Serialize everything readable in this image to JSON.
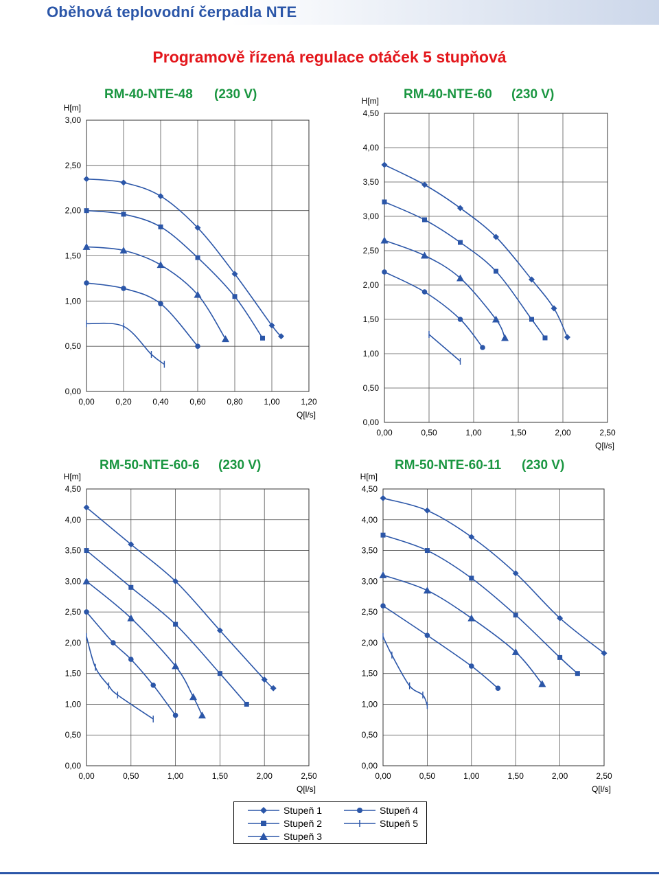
{
  "page": {
    "title": "Oběhová teplovodní čerpadla NTE",
    "subtitle": "Programově řízená regulace otáček 5 stupňová"
  },
  "colors": {
    "series": "#2b56a8",
    "title": "#2b56a8",
    "subtitle": "#e3161b",
    "chart_title": "#1a9641"
  },
  "legend": {
    "items": [
      {
        "label": "Stupeň 1",
        "marker": "diamond"
      },
      {
        "label": "Stupeň 2",
        "marker": "square"
      },
      {
        "label": "Stupeň 3",
        "marker": "triangle"
      },
      {
        "label": "Stupeň 4",
        "marker": "circle"
      },
      {
        "label": "Stupeň 5",
        "marker": "plus"
      }
    ]
  },
  "chart_data": [
    {
      "type": "line",
      "title": "RM-40-NTE-48",
      "voltage": "(230 V)",
      "ylabel": "H[m]",
      "xlabel": "Q[l/s]",
      "xlim": [
        0,
        1.2
      ],
      "ylim": [
        0,
        3
      ],
      "xticks": [
        "0,00",
        "0,20",
        "0,40",
        "0,60",
        "0,80",
        "1,00",
        "1,20"
      ],
      "yticks": [
        "0,00",
        "0,50",
        "1,00",
        "1,50",
        "2,00",
        "2,50",
        "3,00"
      ],
      "grid": true,
      "series": [
        {
          "name": "Stupeň 1",
          "marker": "diamond",
          "points": [
            [
              0,
              2.35
            ],
            [
              0.2,
              2.31
            ],
            [
              0.4,
              2.16
            ],
            [
              0.6,
              1.81
            ],
            [
              0.8,
              1.3
            ],
            [
              1.0,
              0.73
            ],
            [
              1.05,
              0.61
            ]
          ]
        },
        {
          "name": "Stupeň 2",
          "marker": "square",
          "points": [
            [
              0,
              2.0
            ],
            [
              0.2,
              1.96
            ],
            [
              0.4,
              1.82
            ],
            [
              0.6,
              1.48
            ],
            [
              0.8,
              1.05
            ],
            [
              0.95,
              0.59
            ]
          ]
        },
        {
          "name": "Stupeň 3",
          "marker": "triangle",
          "points": [
            [
              0,
              1.6
            ],
            [
              0.2,
              1.56
            ],
            [
              0.4,
              1.4
            ],
            [
              0.6,
              1.07
            ],
            [
              0.75,
              0.58
            ]
          ]
        },
        {
          "name": "Stupeň 4",
          "marker": "circle",
          "points": [
            [
              0,
              1.2
            ],
            [
              0.2,
              1.14
            ],
            [
              0.4,
              0.97
            ],
            [
              0.6,
              0.5
            ]
          ]
        },
        {
          "name": "Stupeň 5",
          "marker": "plus",
          "points": [
            [
              0,
              0.75
            ],
            [
              0.2,
              0.72
            ],
            [
              0.35,
              0.41
            ],
            [
              0.42,
              0.3
            ]
          ]
        }
      ]
    },
    {
      "type": "line",
      "title": "RM-40-NTE-60",
      "voltage": "(230 V)",
      "ylabel": "H[m]",
      "xlabel": "Q[l/s]",
      "xlim": [
        0,
        2.5
      ],
      "ylim": [
        0,
        4.5
      ],
      "xticks": [
        "0,00",
        "0,50",
        "1,00",
        "1,50",
        "2,00",
        "2,50"
      ],
      "yticks": [
        "0,00",
        "0,50",
        "1,00",
        "1,50",
        "2,00",
        "2,50",
        "3,00",
        "3,50",
        "4,00",
        "4,50"
      ],
      "grid": true,
      "series": [
        {
          "name": "Stupeň 1",
          "marker": "diamond",
          "points": [
            [
              0,
              3.75
            ],
            [
              0.45,
              3.46
            ],
            [
              0.85,
              3.12
            ],
            [
              1.25,
              2.7
            ],
            [
              1.65,
              2.08
            ],
            [
              1.9,
              1.66
            ],
            [
              2.05,
              1.24
            ]
          ]
        },
        {
          "name": "Stupeň 2",
          "marker": "square",
          "points": [
            [
              0,
              3.21
            ],
            [
              0.45,
              2.95
            ],
            [
              0.85,
              2.62
            ],
            [
              1.25,
              2.2
            ],
            [
              1.65,
              1.5
            ],
            [
              1.8,
              1.23
            ]
          ]
        },
        {
          "name": "Stupeň 3",
          "marker": "triangle",
          "points": [
            [
              0,
              2.65
            ],
            [
              0.45,
              2.43
            ],
            [
              0.85,
              2.1
            ],
            [
              1.25,
              1.5
            ],
            [
              1.35,
              1.23
            ]
          ]
        },
        {
          "name": "Stupeň 4",
          "marker": "circle",
          "points": [
            [
              0,
              2.19
            ],
            [
              0.45,
              1.9
            ],
            [
              0.85,
              1.5
            ],
            [
              1.1,
              1.09
            ]
          ]
        },
        {
          "name": "Stupeň 5",
          "marker": "plus",
          "points": [
            [
              0.5,
              1.28
            ],
            [
              0.85,
              0.89
            ]
          ]
        }
      ]
    },
    {
      "type": "line",
      "title": "RM-50-NTE-60-6",
      "voltage": "(230 V)",
      "ylabel": "H[m]",
      "xlabel": "Q[l/s]",
      "xlim": [
        0,
        2.5
      ],
      "ylim": [
        0,
        4.5
      ],
      "xticks": [
        "0,00",
        "0,50",
        "1,00",
        "1,50",
        "2,00",
        "2,50"
      ],
      "yticks": [
        "0,00",
        "0,50",
        "1,00",
        "1,50",
        "2,00",
        "2,50",
        "3,00",
        "3,50",
        "4,00",
        "4,50"
      ],
      "grid": true,
      "series": [
        {
          "name": "Stupeň 1",
          "marker": "diamond",
          "points": [
            [
              0,
              4.2
            ],
            [
              0.5,
              3.6
            ],
            [
              1.0,
              3.0
            ],
            [
              1.5,
              2.2
            ],
            [
              2.0,
              1.4
            ],
            [
              2.1,
              1.26
            ]
          ]
        },
        {
          "name": "Stupeň 2",
          "marker": "square",
          "points": [
            [
              0,
              3.5
            ],
            [
              0.5,
              2.9
            ],
            [
              1.0,
              2.3
            ],
            [
              1.5,
              1.5
            ],
            [
              1.8,
              1.0
            ]
          ]
        },
        {
          "name": "Stupeň 3",
          "marker": "triangle",
          "points": [
            [
              0,
              3.0
            ],
            [
              0.5,
              2.4
            ],
            [
              1.0,
              1.62
            ],
            [
              1.2,
              1.12
            ],
            [
              1.3,
              0.82
            ]
          ]
        },
        {
          "name": "Stupeň 4",
          "marker": "circle",
          "points": [
            [
              0,
              2.5
            ],
            [
              0.3,
              2.0
            ],
            [
              0.5,
              1.73
            ],
            [
              0.75,
              1.31
            ],
            [
              1.0,
              0.82
            ]
          ]
        },
        {
          "name": "Stupeň 5",
          "marker": "plus",
          "points": [
            [
              0,
              2.1
            ],
            [
              0.1,
              1.6
            ],
            [
              0.25,
              1.3
            ],
            [
              0.35,
              1.15
            ],
            [
              0.75,
              0.76
            ]
          ]
        }
      ]
    },
    {
      "type": "line",
      "title": "RM-50-NTE-60-11",
      "voltage": "(230 V)",
      "ylabel": "H[m]",
      "xlabel": "Q[l/s]",
      "xlim": [
        0,
        2.5
      ],
      "ylim": [
        0,
        4.5
      ],
      "xticks": [
        "0,00",
        "0,50",
        "1,00",
        "1,50",
        "2,00",
        "2,50"
      ],
      "yticks": [
        "0,00",
        "0,50",
        "1,00",
        "1,50",
        "2,00",
        "2,50",
        "3,00",
        "3,50",
        "4,00",
        "4,50"
      ],
      "grid": true,
      "series": [
        {
          "name": "Stupeň 1",
          "marker": "diamond",
          "points": [
            [
              0,
              4.35
            ],
            [
              0.5,
              4.15
            ],
            [
              1.0,
              3.72
            ],
            [
              1.5,
              3.13
            ],
            [
              2.0,
              2.4
            ],
            [
              2.5,
              1.83
            ]
          ]
        },
        {
          "name": "Stupeň 2",
          "marker": "square",
          "points": [
            [
              0,
              3.75
            ],
            [
              0.5,
              3.5
            ],
            [
              1.0,
              3.05
            ],
            [
              1.5,
              2.45
            ],
            [
              2.0,
              1.76
            ],
            [
              2.2,
              1.5
            ]
          ]
        },
        {
          "name": "Stupeň 3",
          "marker": "triangle",
          "points": [
            [
              0,
              3.1
            ],
            [
              0.5,
              2.85
            ],
            [
              1.0,
              2.4
            ],
            [
              1.5,
              1.85
            ],
            [
              1.8,
              1.33
            ]
          ]
        },
        {
          "name": "Stupeň 4",
          "marker": "circle",
          "points": [
            [
              0,
              2.6
            ],
            [
              0.5,
              2.12
            ],
            [
              1.0,
              1.62
            ],
            [
              1.3,
              1.26
            ]
          ]
        },
        {
          "name": "Stupeň 5",
          "marker": "plus",
          "points": [
            [
              0,
              2.1
            ],
            [
              0.1,
              1.8
            ],
            [
              0.3,
              1.3
            ],
            [
              0.45,
              1.15
            ],
            [
              0.5,
              0.98
            ]
          ]
        }
      ]
    }
  ]
}
